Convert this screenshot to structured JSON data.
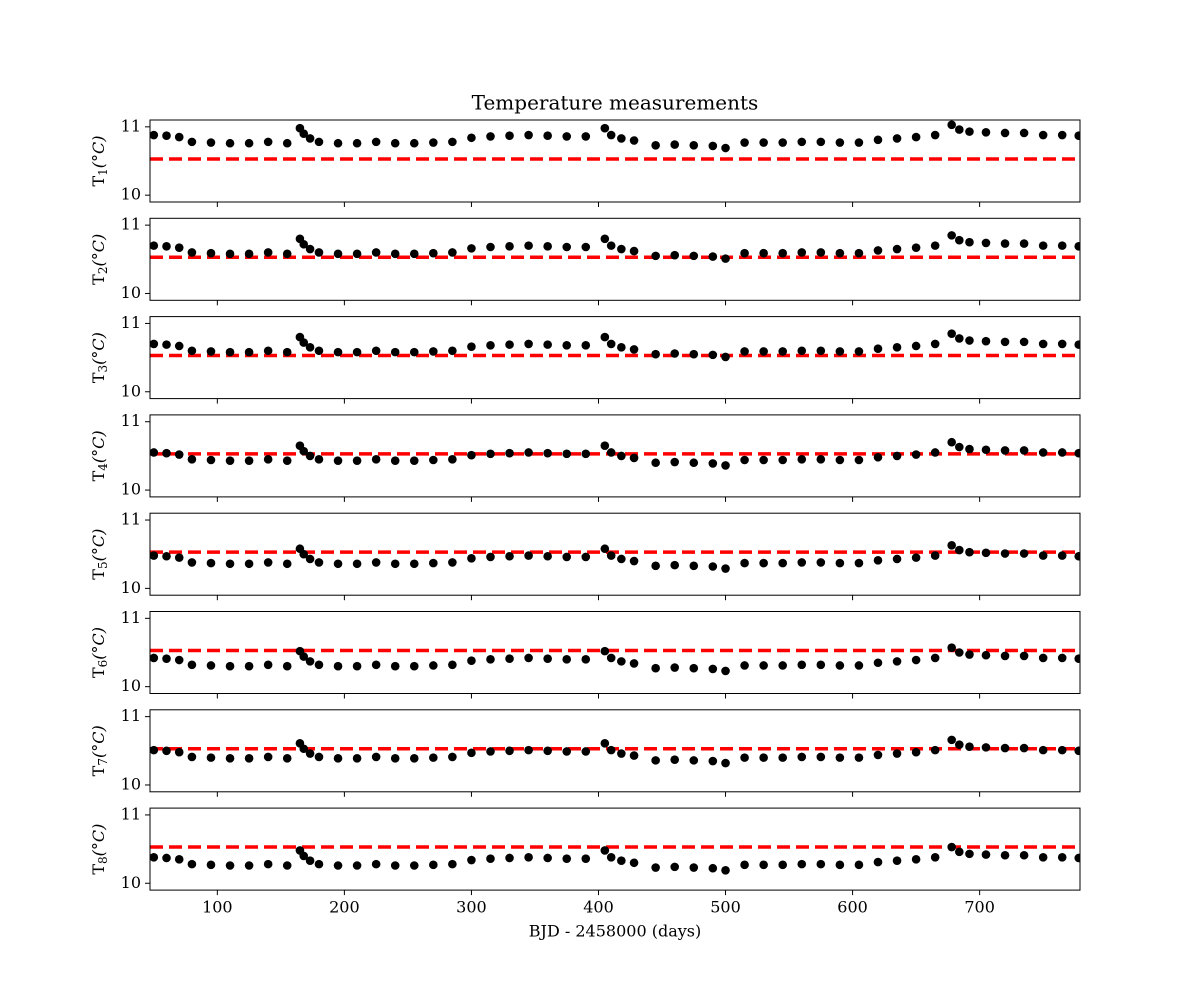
{
  "chart_data": [
    {
      "type": "scatter",
      "title": "Temperature measurements",
      "ylabel": [
        "T",
        "1",
        "(°C)"
      ],
      "x": [
        50,
        60,
        70,
        80,
        95,
        110,
        125,
        140,
        155,
        165,
        168,
        173,
        180,
        195,
        210,
        225,
        240,
        255,
        270,
        285,
        300,
        315,
        330,
        345,
        360,
        375,
        390,
        405,
        410,
        418,
        428,
        445,
        460,
        475,
        490,
        500,
        515,
        530,
        545,
        560,
        575,
        590,
        605,
        620,
        635,
        650,
        665,
        678,
        684,
        692,
        705,
        720,
        735,
        750,
        765,
        778
      ],
      "values": [
        10.88,
        10.87,
        10.85,
        10.78,
        10.77,
        10.76,
        10.76,
        10.78,
        10.76,
        10.98,
        10.9,
        10.83,
        10.78,
        10.76,
        10.76,
        10.78,
        10.76,
        10.76,
        10.77,
        10.78,
        10.84,
        10.86,
        10.87,
        10.88,
        10.87,
        10.86,
        10.86,
        10.98,
        10.88,
        10.83,
        10.8,
        10.73,
        10.74,
        10.73,
        10.72,
        10.69,
        10.77,
        10.77,
        10.77,
        10.78,
        10.78,
        10.77,
        10.77,
        10.81,
        10.83,
        10.85,
        10.88,
        11.03,
        10.96,
        10.93,
        10.92,
        10.91,
        10.91,
        10.88,
        10.88,
        10.87
      ],
      "color": "#000000",
      "hline": 10.53,
      "hline_color": "#ff0000",
      "xlim": [
        47,
        779
      ],
      "xticks": [
        100,
        200,
        300,
        400,
        500,
        600,
        700
      ],
      "ylim": [
        9.9,
        11.1
      ],
      "yticks": [
        10,
        11
      ]
    },
    {
      "type": "scatter",
      "ylabel": [
        "T",
        "2",
        "(°C)"
      ],
      "x": [
        50,
        60,
        70,
        80,
        95,
        110,
        125,
        140,
        155,
        165,
        168,
        173,
        180,
        195,
        210,
        225,
        240,
        255,
        270,
        285,
        300,
        315,
        330,
        345,
        360,
        375,
        390,
        405,
        410,
        418,
        428,
        445,
        460,
        475,
        490,
        500,
        515,
        530,
        545,
        560,
        575,
        590,
        605,
        620,
        635,
        650,
        665,
        678,
        684,
        692,
        705,
        720,
        735,
        750,
        765,
        778
      ],
      "values": [
        10.7,
        10.69,
        10.67,
        10.6,
        10.59,
        10.58,
        10.58,
        10.6,
        10.58,
        10.8,
        10.72,
        10.65,
        10.6,
        10.58,
        10.58,
        10.6,
        10.58,
        10.58,
        10.59,
        10.6,
        10.66,
        10.68,
        10.69,
        10.7,
        10.69,
        10.68,
        10.68,
        10.8,
        10.7,
        10.65,
        10.62,
        10.55,
        10.56,
        10.55,
        10.54,
        10.51,
        10.59,
        10.59,
        10.59,
        10.6,
        10.6,
        10.59,
        10.59,
        10.63,
        10.65,
        10.67,
        10.7,
        10.85,
        10.78,
        10.75,
        10.74,
        10.73,
        10.73,
        10.7,
        10.7,
        10.69
      ],
      "color": "#000000",
      "hline": 10.53,
      "hline_color": "#ff0000",
      "xlim": [
        47,
        779
      ],
      "xticks": [
        100,
        200,
        300,
        400,
        500,
        600,
        700
      ],
      "ylim": [
        9.9,
        11.1
      ],
      "yticks": [
        10,
        11
      ]
    },
    {
      "type": "scatter",
      "ylabel": [
        "T",
        "3",
        "(°C)"
      ],
      "x": [
        50,
        60,
        70,
        80,
        95,
        110,
        125,
        140,
        155,
        165,
        168,
        173,
        180,
        195,
        210,
        225,
        240,
        255,
        270,
        285,
        300,
        315,
        330,
        345,
        360,
        375,
        390,
        405,
        410,
        418,
        428,
        445,
        460,
        475,
        490,
        500,
        515,
        530,
        545,
        560,
        575,
        590,
        605,
        620,
        635,
        650,
        665,
        678,
        684,
        692,
        705,
        720,
        735,
        750,
        765,
        778
      ],
      "values": [
        10.7,
        10.69,
        10.67,
        10.6,
        10.59,
        10.58,
        10.58,
        10.6,
        10.58,
        10.8,
        10.72,
        10.65,
        10.6,
        10.58,
        10.58,
        10.6,
        10.58,
        10.58,
        10.59,
        10.6,
        10.66,
        10.68,
        10.69,
        10.7,
        10.69,
        10.68,
        10.68,
        10.8,
        10.7,
        10.65,
        10.62,
        10.55,
        10.56,
        10.55,
        10.54,
        10.51,
        10.59,
        10.59,
        10.59,
        10.6,
        10.6,
        10.59,
        10.59,
        10.63,
        10.65,
        10.67,
        10.7,
        10.85,
        10.78,
        10.75,
        10.74,
        10.73,
        10.73,
        10.7,
        10.7,
        10.69
      ],
      "color": "#000000",
      "hline": 10.53,
      "hline_color": "#ff0000",
      "xlim": [
        47,
        779
      ],
      "xticks": [
        100,
        200,
        300,
        400,
        500,
        600,
        700
      ],
      "ylim": [
        9.9,
        11.1
      ],
      "yticks": [
        10,
        11
      ]
    },
    {
      "type": "scatter",
      "ylabel": [
        "T",
        "4",
        "(°C)"
      ],
      "x": [
        50,
        60,
        70,
        80,
        95,
        110,
        125,
        140,
        155,
        165,
        168,
        173,
        180,
        195,
        210,
        225,
        240,
        255,
        270,
        285,
        300,
        315,
        330,
        345,
        360,
        375,
        390,
        405,
        410,
        418,
        428,
        445,
        460,
        475,
        490,
        500,
        515,
        530,
        545,
        560,
        575,
        590,
        605,
        620,
        635,
        650,
        665,
        678,
        684,
        692,
        705,
        720,
        735,
        750,
        765,
        778
      ],
      "values": [
        10.55,
        10.54,
        10.52,
        10.45,
        10.44,
        10.43,
        10.43,
        10.45,
        10.43,
        10.65,
        10.57,
        10.5,
        10.45,
        10.43,
        10.43,
        10.45,
        10.43,
        10.43,
        10.44,
        10.45,
        10.51,
        10.53,
        10.54,
        10.55,
        10.54,
        10.53,
        10.53,
        10.65,
        10.55,
        10.5,
        10.47,
        10.4,
        10.41,
        10.4,
        10.39,
        10.36,
        10.44,
        10.44,
        10.44,
        10.45,
        10.45,
        10.44,
        10.44,
        10.48,
        10.5,
        10.52,
        10.55,
        10.7,
        10.63,
        10.6,
        10.59,
        10.58,
        10.58,
        10.55,
        10.55,
        10.54
      ],
      "color": "#000000",
      "hline": 10.53,
      "hline_color": "#ff0000",
      "xlim": [
        47,
        779
      ],
      "xticks": [
        100,
        200,
        300,
        400,
        500,
        600,
        700
      ],
      "ylim": [
        9.9,
        11.1
      ],
      "yticks": [
        10,
        11
      ]
    },
    {
      "type": "scatter",
      "ylabel": [
        "T",
        "5",
        "(°C)"
      ],
      "x": [
        50,
        60,
        70,
        80,
        95,
        110,
        125,
        140,
        155,
        165,
        168,
        173,
        180,
        195,
        210,
        225,
        240,
        255,
        270,
        285,
        300,
        315,
        330,
        345,
        360,
        375,
        390,
        405,
        410,
        418,
        428,
        445,
        460,
        475,
        490,
        500,
        515,
        530,
        545,
        560,
        575,
        590,
        605,
        620,
        635,
        650,
        665,
        678,
        684,
        692,
        705,
        720,
        735,
        750,
        765,
        778
      ],
      "values": [
        10.48,
        10.47,
        10.45,
        10.38,
        10.37,
        10.36,
        10.36,
        10.38,
        10.36,
        10.58,
        10.5,
        10.43,
        10.38,
        10.36,
        10.36,
        10.38,
        10.36,
        10.36,
        10.37,
        10.38,
        10.44,
        10.46,
        10.47,
        10.48,
        10.47,
        10.46,
        10.46,
        10.58,
        10.48,
        10.43,
        10.4,
        10.33,
        10.34,
        10.33,
        10.32,
        10.29,
        10.37,
        10.37,
        10.37,
        10.38,
        10.38,
        10.37,
        10.37,
        10.41,
        10.43,
        10.45,
        10.48,
        10.63,
        10.56,
        10.53,
        10.52,
        10.51,
        10.51,
        10.48,
        10.48,
        10.47
      ],
      "color": "#000000",
      "hline": 10.53,
      "hline_color": "#ff0000",
      "xlim": [
        47,
        779
      ],
      "xticks": [
        100,
        200,
        300,
        400,
        500,
        600,
        700
      ],
      "ylim": [
        9.9,
        11.1
      ],
      "yticks": [
        10,
        11
      ]
    },
    {
      "type": "scatter",
      "ylabel": [
        "T",
        "6",
        "(°C)"
      ],
      "x": [
        50,
        60,
        70,
        80,
        95,
        110,
        125,
        140,
        155,
        165,
        168,
        173,
        180,
        195,
        210,
        225,
        240,
        255,
        270,
        285,
        300,
        315,
        330,
        345,
        360,
        375,
        390,
        405,
        410,
        418,
        428,
        445,
        460,
        475,
        490,
        500,
        515,
        530,
        545,
        560,
        575,
        590,
        605,
        620,
        635,
        650,
        665,
        678,
        684,
        692,
        705,
        720,
        735,
        750,
        765,
        778
      ],
      "values": [
        10.42,
        10.41,
        10.39,
        10.32,
        10.31,
        10.3,
        10.3,
        10.32,
        10.3,
        10.52,
        10.44,
        10.37,
        10.32,
        10.3,
        10.3,
        10.32,
        10.3,
        10.3,
        10.31,
        10.32,
        10.38,
        10.4,
        10.41,
        10.42,
        10.41,
        10.4,
        10.4,
        10.52,
        10.42,
        10.37,
        10.34,
        10.27,
        10.28,
        10.27,
        10.26,
        10.23,
        10.31,
        10.31,
        10.31,
        10.32,
        10.32,
        10.31,
        10.31,
        10.35,
        10.37,
        10.39,
        10.42,
        10.57,
        10.5,
        10.47,
        10.46,
        10.45,
        10.45,
        10.42,
        10.42,
        10.41
      ],
      "color": "#000000",
      "hline": 10.53,
      "hline_color": "#ff0000",
      "xlim": [
        47,
        779
      ],
      "xticks": [
        100,
        200,
        300,
        400,
        500,
        600,
        700
      ],
      "ylim": [
        9.9,
        11.1
      ],
      "yticks": [
        10,
        11
      ]
    },
    {
      "type": "scatter",
      "ylabel": [
        "T",
        "7",
        "(°C)"
      ],
      "x": [
        50,
        60,
        70,
        80,
        95,
        110,
        125,
        140,
        155,
        165,
        168,
        173,
        180,
        195,
        210,
        225,
        240,
        255,
        270,
        285,
        300,
        315,
        330,
        345,
        360,
        375,
        390,
        405,
        410,
        418,
        428,
        445,
        460,
        475,
        490,
        500,
        515,
        530,
        545,
        560,
        575,
        590,
        605,
        620,
        635,
        650,
        665,
        678,
        684,
        692,
        705,
        720,
        735,
        750,
        765,
        778
      ],
      "values": [
        10.51,
        10.5,
        10.48,
        10.41,
        10.4,
        10.39,
        10.39,
        10.41,
        10.39,
        10.61,
        10.53,
        10.46,
        10.41,
        10.39,
        10.39,
        10.41,
        10.39,
        10.39,
        10.4,
        10.41,
        10.47,
        10.49,
        10.5,
        10.51,
        10.5,
        10.49,
        10.49,
        10.61,
        10.51,
        10.46,
        10.43,
        10.36,
        10.37,
        10.36,
        10.35,
        10.32,
        10.4,
        10.4,
        10.4,
        10.41,
        10.41,
        10.4,
        10.4,
        10.44,
        10.46,
        10.48,
        10.51,
        10.66,
        10.59,
        10.56,
        10.55,
        10.54,
        10.54,
        10.51,
        10.51,
        10.5
      ],
      "color": "#000000",
      "hline": 10.53,
      "hline_color": "#ff0000",
      "xlim": [
        47,
        779
      ],
      "xticks": [
        100,
        200,
        300,
        400,
        500,
        600,
        700
      ],
      "ylim": [
        9.9,
        11.1
      ],
      "yticks": [
        10,
        11
      ]
    },
    {
      "type": "scatter",
      "ylabel": [
        "T",
        "8",
        "(°C)"
      ],
      "xlabel": "BJD - 2458000 (days)",
      "x": [
        50,
        60,
        70,
        80,
        95,
        110,
        125,
        140,
        155,
        165,
        168,
        173,
        180,
        195,
        210,
        225,
        240,
        255,
        270,
        285,
        300,
        315,
        330,
        345,
        360,
        375,
        390,
        405,
        410,
        418,
        428,
        445,
        460,
        475,
        490,
        500,
        515,
        530,
        545,
        560,
        575,
        590,
        605,
        620,
        635,
        650,
        665,
        678,
        684,
        692,
        705,
        720,
        735,
        750,
        765,
        778
      ],
      "values": [
        10.38,
        10.37,
        10.35,
        10.28,
        10.27,
        10.26,
        10.26,
        10.28,
        10.26,
        10.48,
        10.4,
        10.33,
        10.28,
        10.26,
        10.26,
        10.28,
        10.26,
        10.26,
        10.27,
        10.28,
        10.34,
        10.36,
        10.37,
        10.38,
        10.37,
        10.36,
        10.36,
        10.48,
        10.38,
        10.33,
        10.3,
        10.23,
        10.24,
        10.23,
        10.22,
        10.19,
        10.27,
        10.27,
        10.27,
        10.28,
        10.28,
        10.27,
        10.27,
        10.31,
        10.33,
        10.35,
        10.38,
        10.53,
        10.46,
        10.43,
        10.42,
        10.41,
        10.41,
        10.38,
        10.38,
        10.37
      ],
      "color": "#000000",
      "hline": 10.53,
      "hline_color": "#ff0000",
      "xlim": [
        47,
        779
      ],
      "xticks": [
        100,
        200,
        300,
        400,
        500,
        600,
        700
      ],
      "ylim": [
        9.9,
        11.1
      ],
      "yticks": [
        10,
        11
      ]
    }
  ]
}
